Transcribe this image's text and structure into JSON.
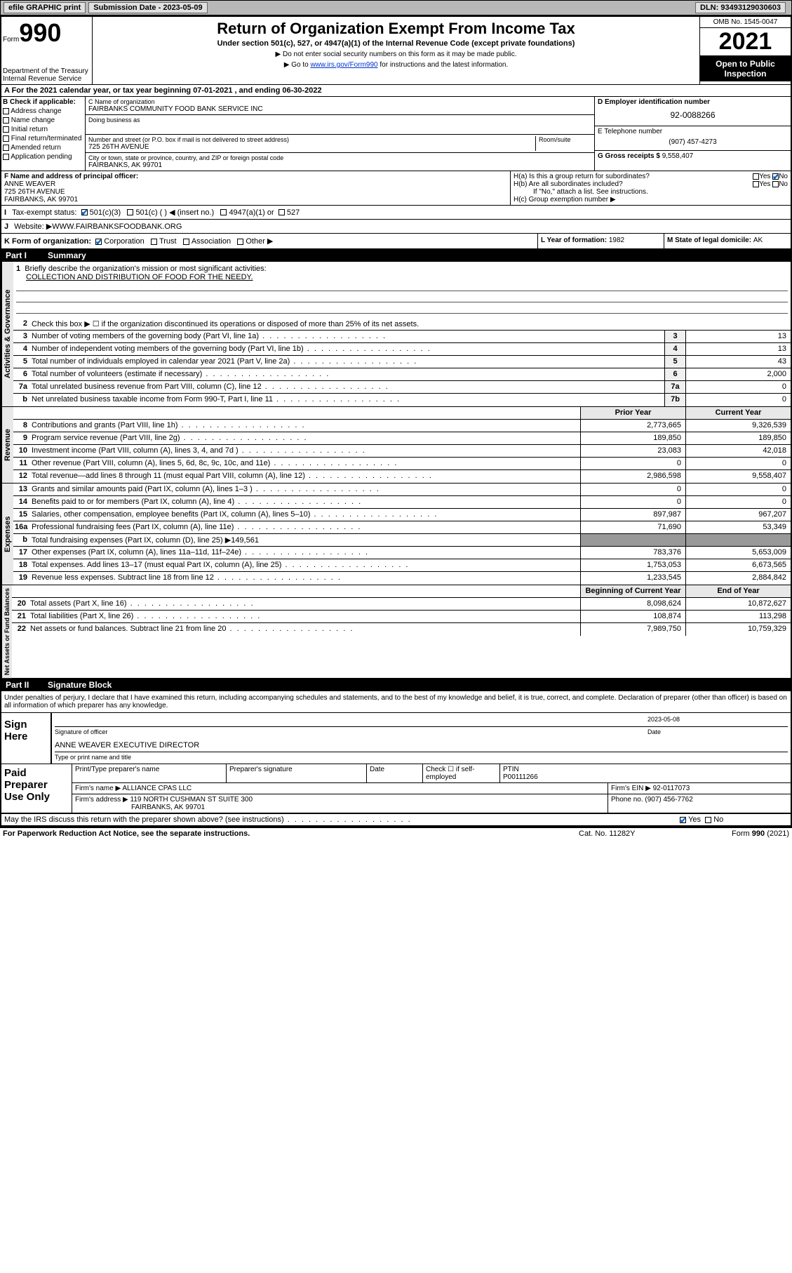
{
  "topbar": {
    "efile": "efile GRAPHIC print",
    "submission_label": "Submission Date - ",
    "submission_date": "2023-05-09",
    "dln_label": "DLN: ",
    "dln": "93493129030603"
  },
  "header": {
    "form_word": "Form",
    "form_num": "990",
    "dept": "Department of the Treasury",
    "irs": "Internal Revenue Service",
    "title": "Return of Organization Exempt From Income Tax",
    "subtitle": "Under section 501(c), 527, or 4947(a)(1) of the Internal Revenue Code (except private foundations)",
    "note1": "▶ Do not enter social security numbers on this form as it may be made public.",
    "note2": "▶ Go to ",
    "note2_link": "www.irs.gov/Form990",
    "note2_rest": " for instructions and the latest information.",
    "omb": "OMB No. 1545-0047",
    "year": "2021",
    "open": "Open to Public Inspection"
  },
  "rowA": "A For the 2021 calendar year, or tax year beginning 07-01-2021   , and ending 06-30-2022",
  "checkB": {
    "label": "B Check if applicable:",
    "items": [
      "Address change",
      "Name change",
      "Initial return",
      "Final return/terminated",
      "Amended return",
      "Application pending"
    ]
  },
  "secC": {
    "name_label": "C Name of organization",
    "name": "FAIRBANKS COMMUNITY FOOD BANK SERVICE INC",
    "dba_label": "Doing business as",
    "dba": "",
    "addr_label": "Number and street (or P.O. box if mail is not delivered to street address)",
    "room_label": "Room/suite",
    "addr": "725 26TH AVENUE",
    "city_label": "City or town, state or province, country, and ZIP or foreign postal code",
    "city": "FAIRBANKS, AK  99701"
  },
  "secD": {
    "label": "D Employer identification number",
    "val": "92-0088266"
  },
  "secE": {
    "label": "E Telephone number",
    "val": "(907) 457-4273"
  },
  "secG": {
    "label": "G Gross receipts $ ",
    "val": "9,558,407"
  },
  "secF": {
    "label": "F Name and address of principal officer:",
    "name": "ANNE WEAVER",
    "addr1": "725 26TH AVENUE",
    "addr2": "FAIRBANKS, AK  99701"
  },
  "secH": {
    "ha": "H(a)  Is this a group return for subordinates?",
    "hb": "H(b)  Are all subordinates included?",
    "hb_note": "If \"No,\" attach a list. See instructions.",
    "hc": "H(c)  Group exemption number ▶",
    "yes": "Yes",
    "no": "No"
  },
  "rowI": {
    "label": "I",
    "text": "Tax-exempt status:",
    "opts": [
      "501(c)(3)",
      "501(c) (  ) ◀ (insert no.)",
      "4947(a)(1) or",
      "527"
    ]
  },
  "rowJ": {
    "label": "J",
    "text": "Website: ▶ ",
    "val": "WWW.FAIRBANKSFOODBANK.ORG"
  },
  "rowK": {
    "label": "K Form of organization:",
    "opts": [
      "Corporation",
      "Trust",
      "Association",
      "Other ▶"
    ]
  },
  "rowL": {
    "label": "L Year of formation: ",
    "val": "1982"
  },
  "rowM": {
    "label": "M State of legal domicile: ",
    "val": "AK"
  },
  "part1": {
    "num": "Part I",
    "title": "Summary"
  },
  "gov": {
    "label": "Activities & Governance",
    "l1": "Briefly describe the organization's mission or most significant activities:",
    "l1v": "COLLECTION AND DISTRIBUTION OF FOOD FOR THE NEEDY.",
    "l2": "Check this box ▶ ☐  if the organization discontinued its operations or disposed of more than 25% of its net assets.",
    "rows": [
      {
        "n": "3",
        "d": "Number of voting members of the governing body (Part VI, line 1a)",
        "b": "3",
        "v": "13"
      },
      {
        "n": "4",
        "d": "Number of independent voting members of the governing body (Part VI, line 1b)",
        "b": "4",
        "v": "13"
      },
      {
        "n": "5",
        "d": "Total number of individuals employed in calendar year 2021 (Part V, line 2a)",
        "b": "5",
        "v": "43"
      },
      {
        "n": "6",
        "d": "Total number of volunteers (estimate if necessary)",
        "b": "6",
        "v": "2,000"
      },
      {
        "n": "7a",
        "d": "Total unrelated business revenue from Part VIII, column (C), line 12",
        "b": "7a",
        "v": "0"
      },
      {
        "n": "b",
        "d": "Net unrelated business taxable income from Form 990-T, Part I, line 11",
        "b": "7b",
        "v": "0"
      }
    ]
  },
  "rev": {
    "label": "Revenue",
    "head": {
      "py": "Prior Year",
      "cy": "Current Year"
    },
    "rows": [
      {
        "n": "8",
        "d": "Contributions and grants (Part VIII, line 1h)",
        "py": "2,773,665",
        "cy": "9,326,539"
      },
      {
        "n": "9",
        "d": "Program service revenue (Part VIII, line 2g)",
        "py": "189,850",
        "cy": "189,850"
      },
      {
        "n": "10",
        "d": "Investment income (Part VIII, column (A), lines 3, 4, and 7d )",
        "py": "23,083",
        "cy": "42,018"
      },
      {
        "n": "11",
        "d": "Other revenue (Part VIII, column (A), lines 5, 6d, 8c, 9c, 10c, and 11e)",
        "py": "0",
        "cy": "0"
      },
      {
        "n": "12",
        "d": "Total revenue—add lines 8 through 11 (must equal Part VIII, column (A), line 12)",
        "py": "2,986,598",
        "cy": "9,558,407"
      }
    ]
  },
  "exp": {
    "label": "Expenses",
    "rows": [
      {
        "n": "13",
        "d": "Grants and similar amounts paid (Part IX, column (A), lines 1–3 )",
        "py": "0",
        "cy": "0"
      },
      {
        "n": "14",
        "d": "Benefits paid to or for members (Part IX, column (A), line 4)",
        "py": "0",
        "cy": "0"
      },
      {
        "n": "15",
        "d": "Salaries, other compensation, employee benefits (Part IX, column (A), lines 5–10)",
        "py": "897,987",
        "cy": "967,207"
      },
      {
        "n": "16a",
        "d": "Professional fundraising fees (Part IX, column (A), line 11e)",
        "py": "71,690",
        "cy": "53,349"
      },
      {
        "n": "b",
        "d": "Total fundraising expenses (Part IX, column (D), line 25) ▶149,561",
        "py": "",
        "cy": "",
        "gray": true
      },
      {
        "n": "17",
        "d": "Other expenses (Part IX, column (A), lines 11a–11d, 11f–24e)",
        "py": "783,376",
        "cy": "5,653,009"
      },
      {
        "n": "18",
        "d": "Total expenses. Add lines 13–17 (must equal Part IX, column (A), line 25)",
        "py": "1,753,053",
        "cy": "6,673,565"
      },
      {
        "n": "19",
        "d": "Revenue less expenses. Subtract line 18 from line 12",
        "py": "1,233,545",
        "cy": "2,884,842"
      }
    ]
  },
  "net": {
    "label": "Net Assets or Fund Balances",
    "head": {
      "py": "Beginning of Current Year",
      "cy": "End of Year"
    },
    "rows": [
      {
        "n": "20",
        "d": "Total assets (Part X, line 16)",
        "py": "8,098,624",
        "cy": "10,872,627"
      },
      {
        "n": "21",
        "d": "Total liabilities (Part X, line 26)",
        "py": "108,874",
        "cy": "113,298"
      },
      {
        "n": "22",
        "d": "Net assets or fund balances. Subtract line 21 from line 20",
        "py": "7,989,750",
        "cy": "10,759,329"
      }
    ]
  },
  "part2": {
    "num": "Part II",
    "title": "Signature Block"
  },
  "sig": {
    "intro": "Under penalties of perjury, I declare that I have examined this return, including accompanying schedules and statements, and to the best of my knowledge and belief, it is true, correct, and complete. Declaration of preparer (other than officer) is based on all information of which preparer has any knowledge.",
    "here": "Sign Here",
    "off_sig": "Signature of officer",
    "date_lbl": "Date",
    "date": "2023-05-08",
    "name": "ANNE WEAVER  EXECUTIVE DIRECTOR",
    "name_lbl": "Type or print name and title"
  },
  "prep": {
    "label": "Paid Preparer Use Only",
    "h": [
      "Print/Type preparer's name",
      "Preparer's signature",
      "Date"
    ],
    "check_lbl": "Check ☐ if self-employed",
    "ptin_lbl": "PTIN",
    "ptin": "P00111266",
    "firm_lbl": "Firm's name   ▶ ",
    "firm": "ALLIANCE CPAS LLC",
    "ein_lbl": "Firm's EIN ▶ ",
    "ein": "92-0117073",
    "addr_lbl": "Firm's address ▶ ",
    "addr1": "119 NORTH CUSHMAN ST SUITE 300",
    "addr2": "FAIRBANKS, AK  99701",
    "phone_lbl": "Phone no. ",
    "phone": "(907) 456-7762"
  },
  "may": {
    "text": "May the IRS discuss this return with the preparer shown above? (see instructions)",
    "yes": "Yes",
    "no": "No"
  },
  "footer": {
    "l": "For Paperwork Reduction Act Notice, see the separate instructions.",
    "m": "Cat. No. 11282Y",
    "r": "Form 990 (2021)"
  }
}
